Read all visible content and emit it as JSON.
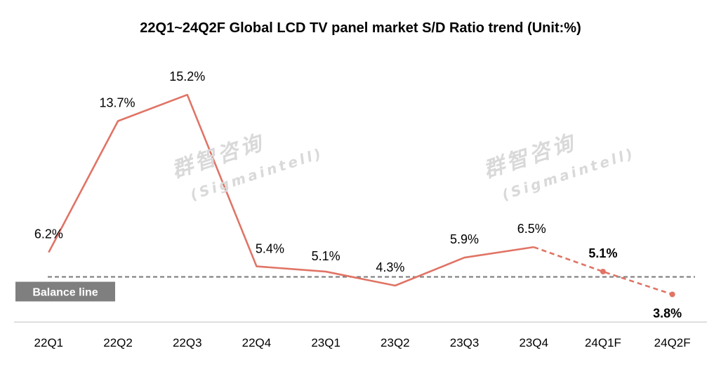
{
  "chart_data": {
    "type": "line",
    "title": "22Q1~24Q2F Global LCD TV panel market S/D Ratio trend (Unit:%)",
    "xlabel": "",
    "ylabel": "",
    "categories": [
      "22Q1",
      "22Q2",
      "22Q3",
      "22Q4",
      "23Q1",
      "23Q2",
      "23Q3",
      "23Q4",
      "24Q1F",
      "24Q2F"
    ],
    "series": [
      {
        "values": [
          6.2,
          13.7,
          15.2,
          5.4,
          5.1,
          4.3,
          5.9,
          6.5,
          5.1,
          3.8
        ],
        "labels": [
          "6.2%",
          "13.7%",
          "15.2%",
          "5.4%",
          "5.1%",
          "4.3%",
          "5.9%",
          "6.5%",
          "5.1%",
          "3.8%"
        ],
        "forecast_from_index": 7,
        "color": "#e07466"
      }
    ],
    "balance_line": {
      "value": 4.8,
      "label": "Balance  line",
      "color": "#7f7f7f"
    },
    "ylim": [
      0,
      17
    ],
    "grid": false,
    "legend": "none",
    "watermark": {
      "cn": "群智咨询",
      "en": "(Sigmaintell)"
    }
  }
}
